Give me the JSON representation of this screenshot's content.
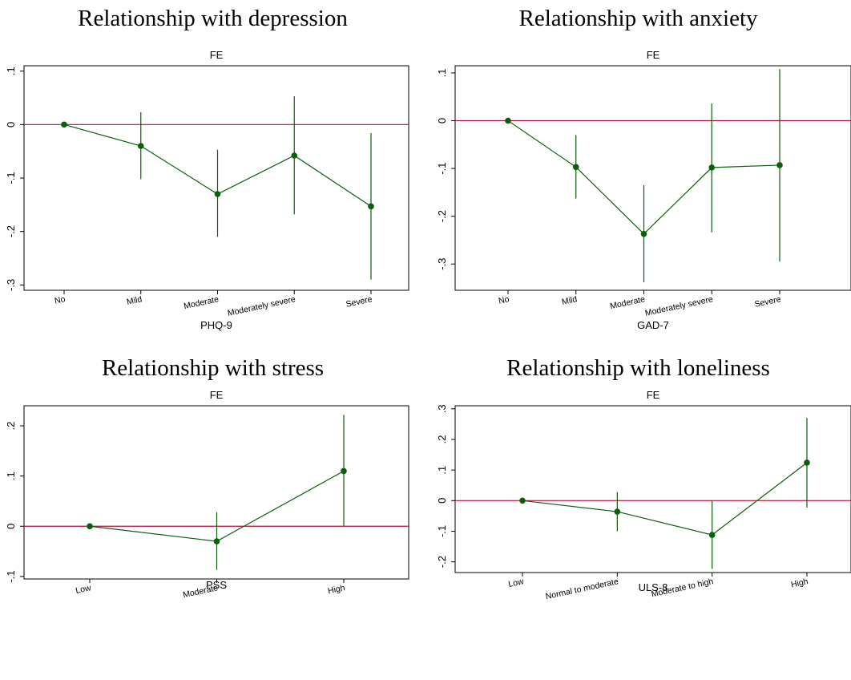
{
  "colors": {
    "line": "#0b5e0b",
    "point": "#0b5e0b",
    "reference_line": "#b0103a",
    "frame": "#000000"
  },
  "panels": [
    {
      "title": "Relationship with depression"
    },
    {
      "title": "Relationship with anxiety"
    },
    {
      "title": "Relationship with stress"
    },
    {
      "title": "Relationship with loneliness"
    }
  ],
  "chart_data": [
    {
      "type": "line",
      "title": "Relationship with depression",
      "subtitle": "FE",
      "xlabel": "PHQ-9",
      "ylabel": "",
      "categories": [
        "No",
        "Mild",
        "Moderate",
        "Moderately severe",
        "Severe"
      ],
      "values": [
        0,
        -0.04,
        -0.13,
        -0.058,
        -0.153
      ],
      "ci_low": [
        0,
        -0.102,
        -0.21,
        -0.168,
        -0.29
      ],
      "ci_high": [
        0,
        0.023,
        -0.047,
        0.053,
        -0.016
      ],
      "yticks": [
        0.1,
        0,
        -0.1,
        -0.2,
        -0.3
      ],
      "ytick_labels": [
        ".1",
        "0",
        "-.1",
        "-.2",
        "-.3"
      ],
      "ylim": [
        -0.31,
        0.11
      ],
      "reference_line": 0,
      "grid": false
    },
    {
      "type": "line",
      "title": "Relationship with anxiety",
      "subtitle": "FE",
      "xlabel": "GAD-7",
      "ylabel": "",
      "categories": [
        "No",
        "Mild",
        "Moderate",
        "Moderately severe",
        "Severe"
      ],
      "values": [
        0,
        -0.097,
        -0.237,
        -0.098,
        -0.093
      ],
      "ci_low": [
        0,
        -0.163,
        -0.338,
        -0.234,
        -0.295
      ],
      "ci_high": [
        0,
        -0.03,
        -0.135,
        0.036,
        0.108
      ],
      "yticks": [
        0.1,
        0,
        -0.1,
        -0.2,
        -0.3
      ],
      "ytick_labels": [
        ".1",
        "0",
        "-.1",
        "-.2",
        "-.3"
      ],
      "ylim": [
        -0.355,
        0.115
      ],
      "reference_line": 0,
      "grid": false
    },
    {
      "type": "line",
      "title": "Relationship with stress",
      "subtitle": "FE",
      "xlabel": "PSS",
      "ylabel": "",
      "categories": [
        "Low",
        "Moderate",
        "High"
      ],
      "values": [
        0,
        -0.03,
        0.11
      ],
      "ci_low": [
        0,
        -0.087,
        0
      ],
      "ci_high": [
        0,
        0.028,
        0.222
      ],
      "yticks": [
        0.2,
        0.1,
        0,
        -0.1
      ],
      "ytick_labels": [
        ".2",
        ".1",
        "0",
        "-.1"
      ],
      "ylim": [
        -0.105,
        0.24
      ],
      "reference_line": 0,
      "grid": false
    },
    {
      "type": "line",
      "title": "Relationship with loneliness",
      "subtitle": "FE",
      "xlabel": "ULS-8",
      "ylabel": "",
      "categories": [
        "Low",
        "Normal to moderate",
        "Moderate to high",
        "High"
      ],
      "values": [
        0,
        -0.036,
        -0.112,
        0.124
      ],
      "ci_low": [
        0,
        -0.1,
        -0.223,
        -0.023
      ],
      "ci_high": [
        0,
        0.028,
        0,
        0.27
      ],
      "yticks": [
        0.3,
        0.2,
        0.1,
        0,
        -0.1,
        -0.2
      ],
      "ytick_labels": [
        ".3",
        ".2",
        ".1",
        "0",
        "-.1",
        "-.2"
      ],
      "ylim": [
        -0.235,
        0.31
      ],
      "reference_line": 0,
      "grid": false
    }
  ]
}
